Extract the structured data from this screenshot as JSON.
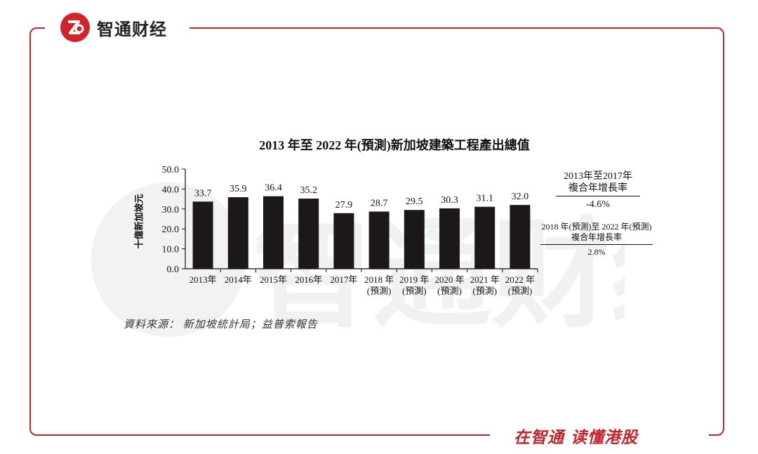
{
  "brand": {
    "name": "智通财经",
    "slogan": "在智通 读懂港股",
    "watermark": "智通财经"
  },
  "chart_data": {
    "type": "bar",
    "title": "2013 年至 2022 年(預測)新加坡建築工程產出總值",
    "ylabel": "十億新加坡元",
    "ylim": [
      0,
      50
    ],
    "yticks": [
      "0.0",
      "10.0",
      "20.0",
      "30.0",
      "40.0",
      "50.0"
    ],
    "categories": [
      [
        "2013年"
      ],
      [
        "2014年"
      ],
      [
        "2015年"
      ],
      [
        "2016年"
      ],
      [
        "2017年"
      ],
      [
        "2018 年",
        "(預測)"
      ],
      [
        "2019 年",
        "(預測)"
      ],
      [
        "2020 年",
        "(預測)"
      ],
      [
        "2021 年",
        "(預測)"
      ],
      [
        "2022 年",
        "(預測)"
      ]
    ],
    "values": [
      33.7,
      35.9,
      36.4,
      35.2,
      27.9,
      28.7,
      29.5,
      30.3,
      31.1,
      32.0
    ],
    "value_labels": [
      "33.7",
      "35.9",
      "36.4",
      "35.2",
      "27.9",
      "28.7",
      "29.5",
      "30.3",
      "31.1",
      "32.0"
    ],
    "bar_color": "#1c1718",
    "annotations": {
      "cagr_2013_2017": {
        "line1": "2013年至2017年",
        "line2": "複合年增長率",
        "value": "-4.6%"
      },
      "cagr_2018_2022": {
        "line1": "2018 年(預測)至 2022 年(預測)",
        "line2": "複合年增長率",
        "value": "2.8%"
      }
    },
    "source": "資料來源： 新加坡統計局；益普索報告"
  },
  "colors": {
    "accent": "#c0272d"
  }
}
